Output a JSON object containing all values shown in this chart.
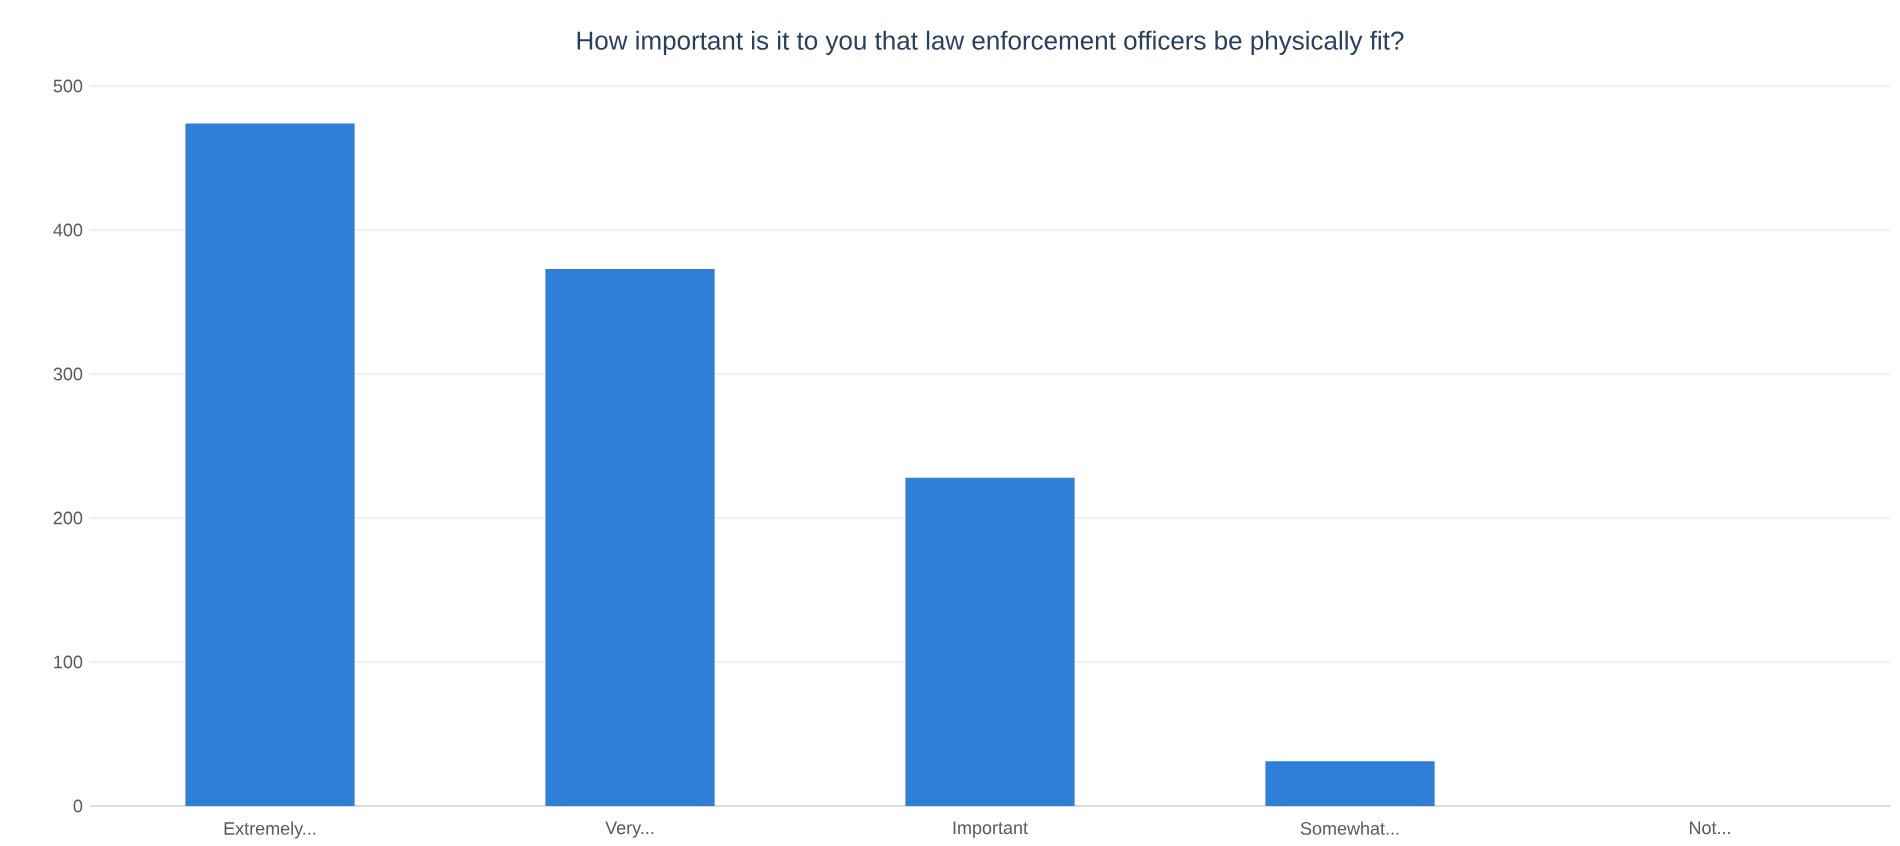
{
  "chart_data": {
    "type": "bar",
    "title": "How important is it to you that law enforcement officers be physically fit?",
    "categories": [
      "Extremely...",
      "Very...",
      "Important",
      "Somewhat...",
      "Not..."
    ],
    "values": [
      474,
      373,
      228,
      31,
      0
    ],
    "color": "#2f7ed8",
    "ylim": [
      0,
      500
    ],
    "yticks": [
      0,
      100,
      200,
      300,
      400,
      500
    ],
    "grid": "y"
  }
}
